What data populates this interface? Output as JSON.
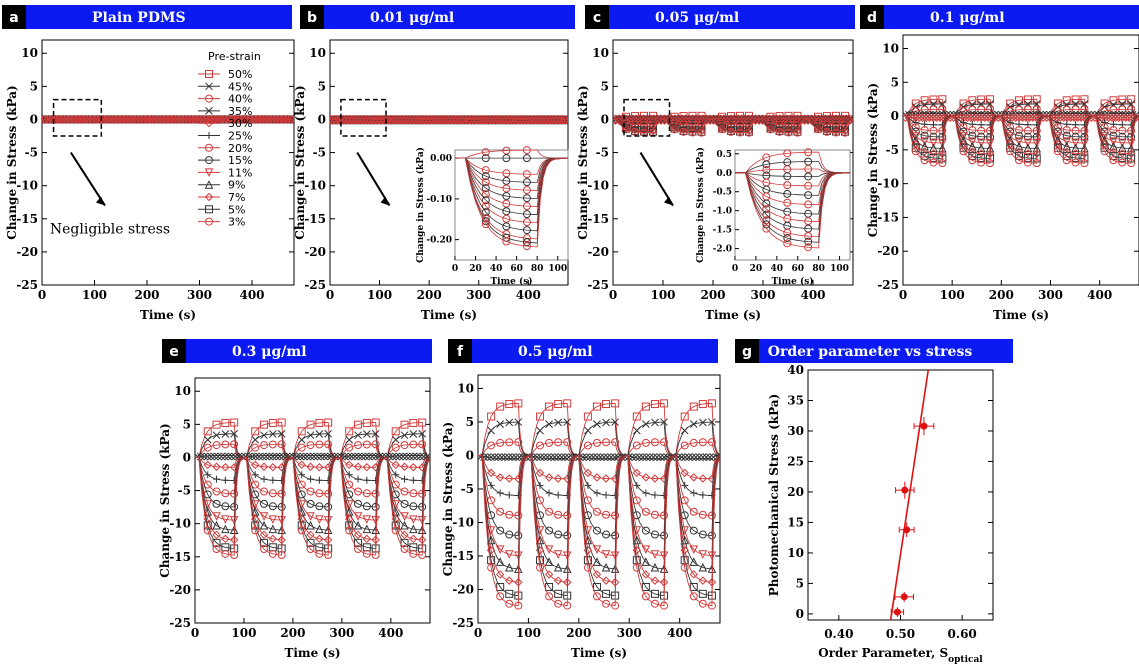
{
  "figure": {
    "panels": [
      {
        "letter": "a",
        "title": "Plain PDMS"
      },
      {
        "letter": "b",
        "title": "0.01 μg/ml"
      },
      {
        "letter": "c",
        "title": "0.05 μg/ml"
      },
      {
        "letter": "d",
        "title": "0.1 μg/ml"
      },
      {
        "letter": "e",
        "title": "0.3 μg/ml"
      },
      {
        "letter": "f",
        "title": "0.5 μg/ml"
      },
      {
        "letter": "g",
        "title": "Order parameter vs stress"
      }
    ],
    "ylabel": "Change in Stress (kPa)",
    "xlabel": "Time (s)",
    "legend_title": "Pre-strain",
    "annotation_a": "Negligible stress",
    "inset_ylabel": "Change in Stress (kPa)",
    "inset_xlabel": "Time (s)",
    "g_ylabel": "Photomechanical Stress (kPa)",
    "g_xlabel_main": "Order Parameter, S",
    "g_xlabel_sub": "optical"
  },
  "chart_data": [
    {
      "type": "line",
      "panel": "a",
      "title": "Plain PDMS",
      "xlabel": "Time (s)",
      "ylabel": "Change in Stress (kPa)",
      "xlim": [
        0,
        480
      ],
      "ylim": [
        -25,
        12
      ],
      "xticks": [
        0,
        100,
        200,
        300,
        400
      ],
      "yticks": [
        10,
        5,
        0,
        -5,
        -10,
        -15,
        -20,
        -25
      ],
      "pulse_amplitudes_kPa": [
        0,
        0,
        0,
        0,
        0,
        0,
        0,
        0,
        0,
        0,
        0,
        0,
        0
      ],
      "legend": {
        "title": "Pre-strain",
        "entries": [
          "50%",
          "45%",
          "40%",
          "35%",
          "30%",
          "25%",
          "20%",
          "15%",
          "11%",
          "9%",
          "7%",
          "5%",
          "3%"
        ],
        "markers": [
          "square",
          "x",
          "circle",
          "x",
          "diamond",
          "plus",
          "circle",
          "circle",
          "triangle-down",
          "triangle-up",
          "diamond",
          "square",
          "circle"
        ]
      },
      "annotation": "Negligible stress"
    },
    {
      "type": "line",
      "panel": "b",
      "title": "0.01 μg/ml",
      "xlabel": "Time (s)",
      "ylabel": "Change in Stress (kPa)",
      "xlim": [
        0,
        480
      ],
      "ylim": [
        -25,
        12
      ],
      "xticks": [
        0,
        100,
        200,
        300,
        400
      ],
      "yticks": [
        10,
        5,
        0,
        -5,
        -10,
        -15,
        -20,
        -25
      ],
      "pulse_amplitudes_kPa": [
        0.02,
        0,
        -0.04,
        -0.06,
        -0.08,
        -0.1,
        -0.12,
        -0.14,
        -0.16,
        -0.18,
        -0.2,
        -0.21,
        -0.22
      ],
      "inset": {
        "xlim": [
          0,
          110
        ],
        "ylim": [
          -0.25,
          0.02
        ],
        "xticks": [
          0,
          20,
          40,
          60,
          80,
          100
        ],
        "yticks": [
          0,
          -0.1,
          -0.2
        ],
        "ytick_labels": [
          "0.00",
          "-0.10",
          "-0.20"
        ],
        "xlabel": "Time (s)",
        "ylabel": "Change in Stress (kPa)"
      }
    },
    {
      "type": "line",
      "panel": "c",
      "title": "0.05 μg/ml",
      "xlabel": "Time (s)",
      "ylabel": "Change in Stress (kPa)",
      "xlim": [
        0,
        480
      ],
      "ylim": [
        -25,
        12
      ],
      "xticks": [
        0,
        100,
        200,
        300,
        400
      ],
      "yticks": [
        10,
        5,
        0,
        -5,
        -10,
        -15,
        -20,
        -25
      ],
      "pulse_amplitudes_kPa": [
        0.55,
        0.3,
        0.1,
        -0.1,
        -0.35,
        -0.6,
        -0.85,
        -1.1,
        -1.3,
        -1.5,
        -1.7,
        -1.85,
        -2.0
      ],
      "inset": {
        "xlim": [
          0,
          110
        ],
        "ylim": [
          -2.3,
          0.6
        ],
        "xticks": [
          0,
          20,
          40,
          60,
          80,
          100
        ],
        "yticks": [
          0.5,
          0,
          -0.5,
          -1.0,
          -1.5,
          -2.0
        ],
        "ytick_labels": [
          "0.5",
          "0.0",
          "-0.5",
          "-1.0",
          "-1.5",
          "-2.0"
        ],
        "xlabel": "Time (s)",
        "ylabel": "Change in Stress (kPa)"
      }
    },
    {
      "type": "line",
      "panel": "d",
      "title": "0.1 μg/ml",
      "xlabel": "Time (s)",
      "ylabel": "Change in Stress (kPa)",
      "xlim": [
        0,
        480
      ],
      "ylim": [
        -25,
        12
      ],
      "xticks": [
        0,
        100,
        200,
        300,
        400
      ],
      "yticks": [
        10,
        5,
        0,
        -5,
        -10,
        -15,
        -20,
        -25
      ],
      "pulse_amplitudes_kPa": [
        2.5,
        1.8,
        1.0,
        0.4,
        -0.5,
        -1.3,
        -2.2,
        -3.1,
        -4.0,
        -4.8,
        -5.6,
        -6.3,
        -7.0
      ]
    },
    {
      "type": "line",
      "panel": "e",
      "title": "0.3 μg/ml",
      "xlabel": "Time (s)",
      "ylabel": "Change in Stress (kPa)",
      "xlim": [
        0,
        480
      ],
      "ylim": [
        -25,
        12
      ],
      "xticks": [
        0,
        100,
        200,
        300,
        400
      ],
      "yticks": [
        10,
        5,
        0,
        -5,
        -10,
        -15,
        -20,
        -25
      ],
      "pulse_amplitudes_kPa": [
        5.3,
        3.6,
        2.0,
        0.3,
        -1.5,
        -3.5,
        -5.5,
        -7.5,
        -9.5,
        -11.0,
        -12.5,
        -13.8,
        -14.8
      ]
    },
    {
      "type": "line",
      "panel": "f",
      "title": "0.5 μg/ml",
      "xlabel": "Time (s)",
      "ylabel": "Change in Stress (kPa)",
      "xlim": [
        0,
        480
      ],
      "ylim": [
        -25,
        12
      ],
      "xticks": [
        0,
        100,
        200,
        300,
        400
      ],
      "yticks": [
        10,
        5,
        0,
        -5,
        -10,
        -15,
        -20,
        -25
      ],
      "pulse_amplitudes_kPa": [
        7.8,
        5.0,
        2.0,
        -0.5,
        -3.5,
        -6.0,
        -9.0,
        -12.0,
        -15.0,
        -17.0,
        -19.0,
        -21.0,
        -22.5
      ]
    },
    {
      "type": "scatter",
      "panel": "g",
      "title": "Order parameter vs stress",
      "xlabel": "Order Parameter, S_optical",
      "ylabel": "Photomechanical Stress (kPa)",
      "xlim": [
        0.35,
        0.65
      ],
      "ylim": [
        -1,
        40
      ],
      "xticks": [
        0.4,
        0.5,
        0.6
      ],
      "xtick_labels": [
        "0.40",
        "0.50",
        "0.60"
      ],
      "yticks": [
        0,
        5,
        10,
        15,
        20,
        25,
        30,
        35,
        40
      ],
      "points": [
        {
          "x": 0.495,
          "y": 0.3,
          "xerr": 0.01,
          "yerr": 0.8
        },
        {
          "x": 0.506,
          "y": 2.8,
          "xerr": 0.015,
          "yerr": 0.8
        },
        {
          "x": 0.51,
          "y": 13.8,
          "xerr": 0.012,
          "yerr": 1.2
        },
        {
          "x": 0.507,
          "y": 20.3,
          "xerr": 0.015,
          "yerr": 1.4
        },
        {
          "x": 0.538,
          "y": 30.8,
          "xerr": 0.016,
          "yerr": 1.5
        }
      ],
      "fit_line": {
        "x": [
          0.484,
          0.545
        ],
        "y": [
          -1,
          40
        ]
      }
    }
  ]
}
